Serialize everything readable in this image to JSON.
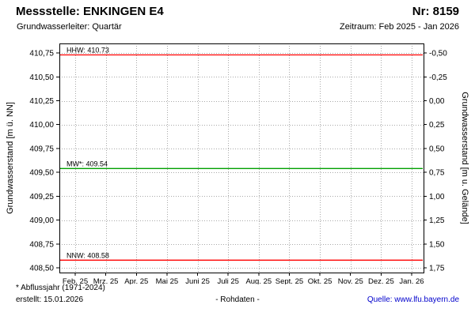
{
  "header": {
    "title": "Messstelle: ENKINGEN E4",
    "number": "Nr: 8159",
    "aquifer": "Grundwasserleiter: Quartär",
    "period": "Zeitraum: Feb 2025 - Jan 2026"
  },
  "footer": {
    "note": "* Abflussjahr (1971-2024)",
    "created": "erstellt: 15.01.2026",
    "center": "- Rohdaten -",
    "source": "Quelle: www.lfu.bayern.de"
  },
  "colors": {
    "extreme_line": "#ff0000",
    "mean_line": "#00a000",
    "grid": "#a8a8a8",
    "frame": "#000000",
    "link": "#0000cc"
  },
  "chart_data": {
    "type": "line",
    "title": "Messstelle: ENKINGEN E4 (Nr: 8159)",
    "xlabel": "",
    "ylabel_left": "Grundwasserstand [m ü. NN]",
    "ylabel_right": "Grundwasserstand [m u. Gelände]",
    "ylim_left": [
      408.45,
      410.85
    ],
    "ground_level_m_nn": 410.25,
    "grid": true,
    "legend": false,
    "x_ticks": [
      "Feb. 25",
      "Mrz. 25",
      "Apr. 25",
      "Mai 25",
      "Juni 25",
      "Juli 25",
      "Aug. 25",
      "Sept. 25",
      "Okt. 25",
      "Nov. 25",
      "Dez. 25",
      "Jan. 26"
    ],
    "left_ticks": [
      {
        "value": 410.75,
        "label": "410,75"
      },
      {
        "value": 410.5,
        "label": "410,50"
      },
      {
        "value": 410.25,
        "label": "410,25"
      },
      {
        "value": 410.0,
        "label": "410,00"
      },
      {
        "value": 409.75,
        "label": "409,75"
      },
      {
        "value": 409.5,
        "label": "409,50"
      },
      {
        "value": 409.25,
        "label": "409,25"
      },
      {
        "value": 409.0,
        "label": "409,00"
      },
      {
        "value": 408.75,
        "label": "408,75"
      },
      {
        "value": 408.5,
        "label": "408,50"
      }
    ],
    "right_ticks": [
      {
        "at": 410.75,
        "label": "-0,50"
      },
      {
        "at": 410.5,
        "label": "-0,25"
      },
      {
        "at": 410.25,
        "label": "0,00"
      },
      {
        "at": 410.0,
        "label": "0,25"
      },
      {
        "at": 409.75,
        "label": "0,50"
      },
      {
        "at": 409.5,
        "label": "0,75"
      },
      {
        "at": 409.25,
        "label": "1,00"
      },
      {
        "at": 409.0,
        "label": "1,25"
      },
      {
        "at": 408.75,
        "label": "1,50"
      },
      {
        "at": 408.5,
        "label": "1,75"
      }
    ],
    "reference_lines": [
      {
        "name": "HHW",
        "value": 410.73,
        "label": "HHW: 410.73",
        "color": "#ff0000"
      },
      {
        "name": "MW*",
        "value": 409.54,
        "label": "MW*: 409.54",
        "color": "#00a000"
      },
      {
        "name": "NNW",
        "value": 408.58,
        "label": "NNW: 408.58",
        "color": "#ff0000"
      }
    ],
    "series": []
  }
}
